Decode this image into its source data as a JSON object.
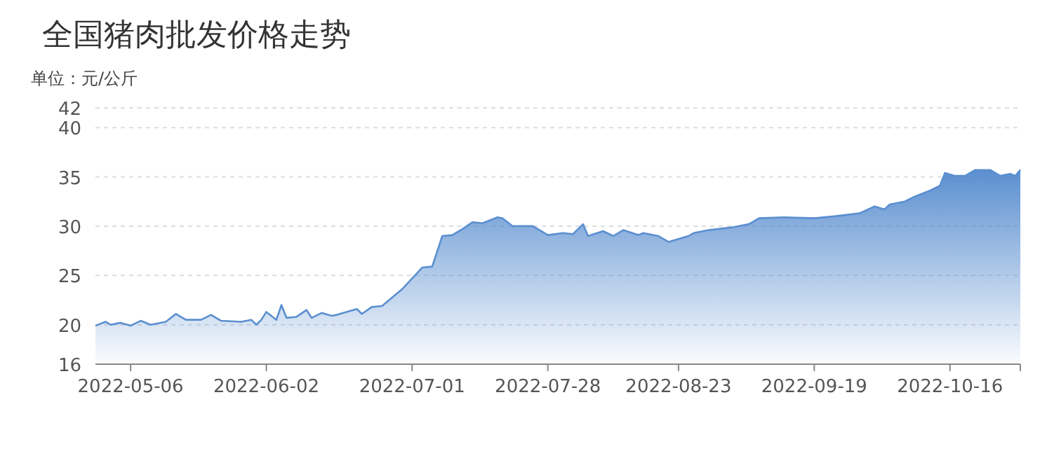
{
  "chart_data": {
    "type": "area",
    "title": "全国猪肉批发价格走势",
    "ylabel": "单位：元/公斤",
    "color": "#5b8fd0",
    "grid": "y",
    "xlim": [
      "2022-04-29",
      "2022-10-30"
    ],
    "ylim": [
      16,
      42
    ],
    "yticks": [
      16,
      20,
      25,
      30,
      35,
      40,
      42
    ],
    "xticks": [
      {
        "value": "2022-05-06",
        "label": "2022-05-06"
      },
      {
        "value": "2022-06-02",
        "label": "2022-06-02"
      },
      {
        "value": "2022-07-01",
        "label": "2022-07-01"
      },
      {
        "value": "2022-07-28",
        "label": "2022-07-28"
      },
      {
        "value": "2022-08-23",
        "label": "2022-08-23"
      },
      {
        "value": "2022-09-19",
        "label": "2022-09-19"
      },
      {
        "value": "2022-10-16",
        "label": "2022-10-16"
      }
    ],
    "x": [
      "2022-04-29",
      "2022-05-01",
      "2022-05-02",
      "2022-05-04",
      "2022-05-06",
      "2022-05-08",
      "2022-05-10",
      "2022-05-13",
      "2022-05-15",
      "2022-05-17",
      "2022-05-20",
      "2022-05-22",
      "2022-05-24",
      "2022-05-28",
      "2022-05-30",
      "2022-05-31",
      "2022-06-01",
      "2022-06-02",
      "2022-06-04",
      "2022-06-05",
      "2022-06-06",
      "2022-06-08",
      "2022-06-10",
      "2022-06-11",
      "2022-06-13",
      "2022-06-15",
      "2022-06-16",
      "2022-06-20",
      "2022-06-21",
      "2022-06-23",
      "2022-06-25",
      "2022-06-29",
      "2022-07-01",
      "2022-07-03",
      "2022-07-05",
      "2022-07-07",
      "2022-07-09",
      "2022-07-11",
      "2022-07-13",
      "2022-07-15",
      "2022-07-18",
      "2022-07-19",
      "2022-07-21",
      "2022-07-25",
      "2022-07-28",
      "2022-07-31",
      "2022-08-02",
      "2022-08-04",
      "2022-08-05",
      "2022-08-08",
      "2022-08-10",
      "2022-08-12",
      "2022-08-15",
      "2022-08-16",
      "2022-08-19",
      "2022-08-21",
      "2022-08-25",
      "2022-08-26",
      "2022-08-29",
      "2022-09-03",
      "2022-09-06",
      "2022-09-08",
      "2022-09-13",
      "2022-09-19",
      "2022-09-23",
      "2022-09-28",
      "2022-10-01",
      "2022-10-03",
      "2022-10-04",
      "2022-10-07",
      "2022-10-09",
      "2022-10-12",
      "2022-10-14",
      "2022-10-15",
      "2022-10-17",
      "2022-10-19",
      "2022-10-21",
      "2022-10-24",
      "2022-10-26",
      "2022-10-28",
      "2022-10-29",
      "2022-10-30"
    ],
    "values": [
      19.9,
      20.3,
      20.0,
      20.2,
      19.9,
      20.4,
      20.0,
      20.3,
      21.1,
      20.5,
      20.5,
      21.0,
      20.4,
      20.3,
      20.5,
      20.0,
      20.5,
      21.3,
      20.5,
      22.0,
      20.7,
      20.8,
      21.5,
      20.7,
      21.2,
      20.9,
      21.0,
      21.6,
      21.1,
      21.8,
      21.9,
      23.6,
      24.7,
      25.8,
      25.9,
      29.0,
      29.1,
      29.7,
      30.4,
      30.3,
      30.9,
      30.8,
      30.0,
      30.0,
      29.1,
      29.3,
      29.2,
      30.2,
      29.0,
      29.5,
      29.0,
      29.6,
      29.1,
      29.3,
      29.0,
      28.4,
      29.0,
      29.3,
      29.6,
      29.9,
      30.2,
      30.8,
      30.9,
      30.8,
      31.0,
      31.3,
      32.0,
      31.7,
      32.2,
      32.5,
      33.0,
      33.6,
      34.1,
      35.4,
      35.1,
      35.1,
      35.7,
      35.7,
      35.1,
      35.3,
      35.1,
      35.7
    ]
  }
}
